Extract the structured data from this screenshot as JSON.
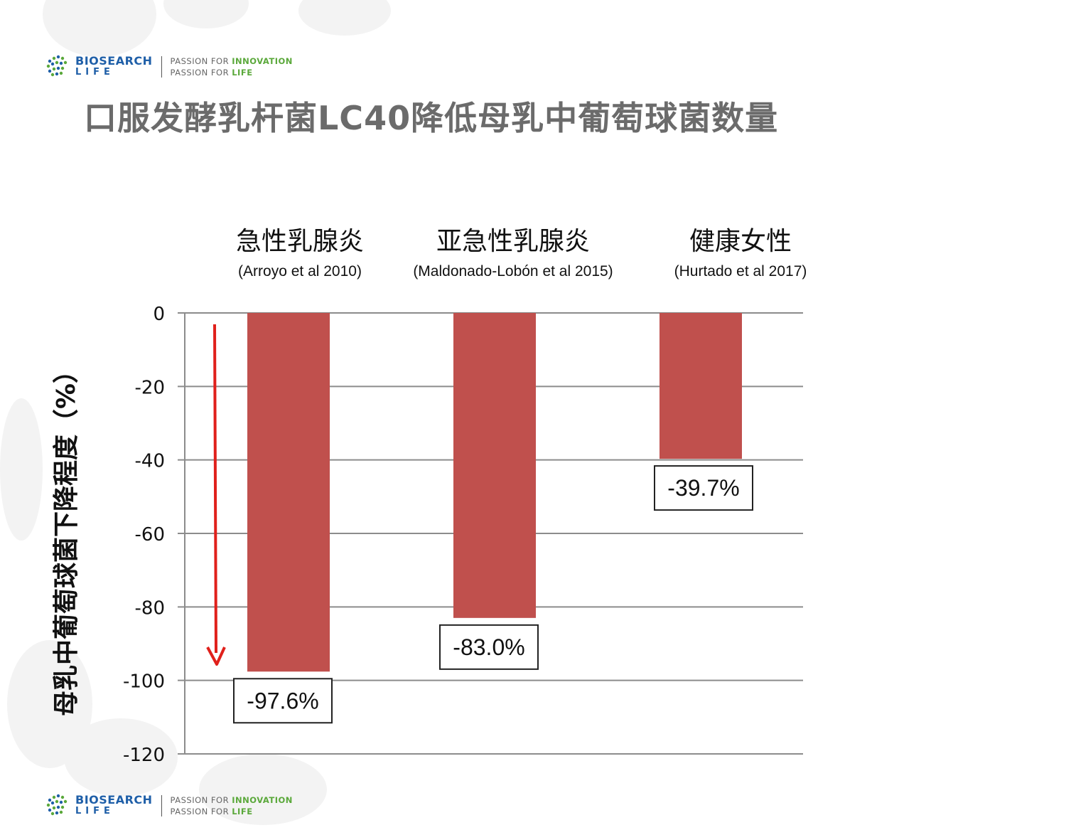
{
  "header": {
    "brand_top": "BIOSEARCH",
    "brand_bottom": "LIFE",
    "tag_line1_prefix": "PASSION FOR ",
    "tag_line1_highlight": "INNOVATION",
    "tag_line2_prefix": "PASSION FOR ",
    "tag_line2_highlight": "LIFE"
  },
  "footer": {
    "brand_top": "BIOSEARCH",
    "brand_bottom": "LIFE",
    "tag_line1_prefix": "PASSION FOR ",
    "tag_line1_highlight": "INNOVATION",
    "tag_line2_prefix": "PASSION FOR ",
    "tag_line2_highlight": "LIFE"
  },
  "colors": {
    "brand_blue": "#1f5fa8",
    "brand_green": "#5aa83a",
    "bar": "#c0504d",
    "arrow": "#e0201b",
    "grid": "#8c8c8c"
  },
  "chart_data": {
    "type": "bar",
    "title": "口服发酵乳杆菌LC40降低母乳中葡萄球菌数量",
    "ylabel": "母乳中葡萄球菌下降程度（%）",
    "xlabel": "",
    "categories": [
      "急性乳腺炎",
      "亚急性乳腺炎",
      "健康女性"
    ],
    "references": [
      "(Arroyo et al 2010)",
      "(Maldonado-Lobón et al 2015)",
      "(Hurtado et al 2017)"
    ],
    "values": [
      -97.6,
      -83.0,
      -39.7
    ],
    "data_labels": [
      "-97.6%",
      "-83.0%",
      "-39.7%"
    ],
    "ylim": [
      -120,
      0
    ],
    "yticks": [
      0,
      -20,
      -40,
      -60,
      -80,
      -100,
      -120
    ],
    "ytick_labels": [
      "0",
      "-20",
      "-40",
      "-60",
      "-80",
      "-100",
      "-120"
    ],
    "grid": true,
    "legend": "none"
  }
}
